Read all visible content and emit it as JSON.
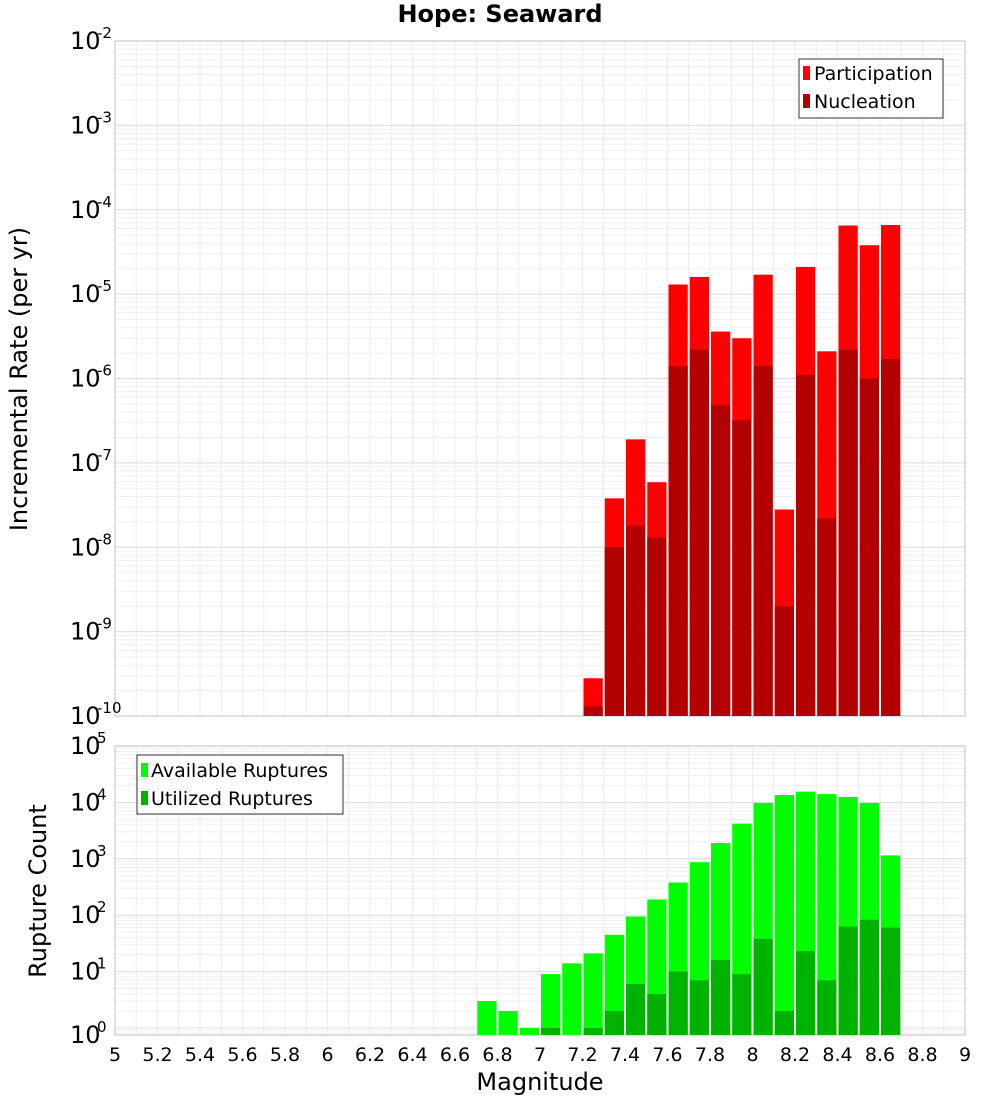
{
  "chart_data": {
    "title": "Hope: Seaward",
    "xlabel": "Magnitude",
    "x_tick_labels": [
      "5",
      "5.2",
      "5.4",
      "5.6",
      "5.8",
      "6",
      "6.2",
      "6.4",
      "6.6",
      "6.8",
      "7",
      "7.2",
      "7.4",
      "7.6",
      "7.8",
      "8",
      "8.2",
      "8.4",
      "8.6",
      "8.8",
      "9"
    ],
    "xlim": [
      5,
      9
    ],
    "bin_width": 0.1,
    "grid": true,
    "panels": [
      {
        "type": "bar",
        "ylabel": "Incremental Rate (per yr)",
        "yscale": "log",
        "ylim": [
          1e-10,
          0.01
        ],
        "y_tick_exponents": [
          "-10",
          "-9",
          "-8",
          "-7",
          "-6",
          "-5",
          "-4",
          "-3",
          "-2"
        ],
        "legend_position": "top-right",
        "series": [
          {
            "name": "Participation",
            "color": "#ff0000",
            "x": [
              7.25,
              7.35,
              7.45,
              7.55,
              7.65,
              7.75,
              7.85,
              7.95,
              8.05,
              8.15,
              8.25,
              8.35,
              8.45,
              8.55,
              8.65
            ],
            "values": [
              2.8e-10,
              3.8e-08,
              1.9e-07,
              5.9e-08,
              1.3e-05,
              1.6e-05,
              3.6e-06,
              3e-06,
              1.7e-05,
              2.8e-08,
              2.1e-05,
              2.1e-06,
              6.5e-05,
              3.8e-05,
              6.6e-05
            ]
          },
          {
            "name": "Nucleation",
            "color": "#b30000",
            "x": [
              7.25,
              7.35,
              7.45,
              7.55,
              7.65,
              7.75,
              7.85,
              7.95,
              8.05,
              8.15,
              8.25,
              8.35,
              8.45,
              8.55,
              8.65
            ],
            "values": [
              1.3e-10,
              1e-08,
              1.8e-08,
              1.3e-08,
              1.4e-06,
              2.2e-06,
              4.8e-07,
              3.2e-07,
              1.4e-06,
              2e-09,
              1.1e-06,
              2.2e-08,
              2.2e-06,
              1e-06,
              1.7e-06
            ]
          }
        ]
      },
      {
        "type": "bar",
        "ylabel": "Rupture Count",
        "yscale": "log",
        "ylim": [
          0.75,
          100000.0
        ],
        "y_tick_exponents": [
          "0",
          "1",
          "2",
          "3",
          "4",
          "5"
        ],
        "legend_position": "top-left",
        "series": [
          {
            "name": "Available Ruptures",
            "color": "#00ff00",
            "x": [
              6.75,
              6.85,
              6.95,
              7.05,
              7.15,
              7.25,
              7.35,
              7.45,
              7.55,
              7.65,
              7.75,
              7.85,
              7.95,
              8.05,
              8.15,
              8.25,
              8.35,
              8.45,
              8.55,
              8.65
            ],
            "values": [
              3,
              2,
              1,
              9,
              14,
              21,
              45,
              95,
              190,
              380,
              870,
              1900,
              4200,
              9800,
              13500,
              15500,
              14000,
              12500,
              9800,
              1150
            ]
          },
          {
            "name": "Utilized Ruptures",
            "color": "#00b300",
            "x": [
              6.75,
              6.85,
              6.95,
              7.05,
              7.15,
              7.25,
              7.35,
              7.45,
              7.55,
              7.65,
              7.75,
              7.85,
              7.95,
              8.05,
              8.15,
              8.25,
              8.35,
              8.45,
              8.55,
              8.65
            ],
            "values": [
              0,
              0,
              0,
              1,
              0,
              1,
              2,
              6,
              4,
              10,
              7,
              16,
              9,
              38,
              2,
              23,
              7,
              63,
              83,
              60
            ]
          }
        ]
      }
    ]
  }
}
